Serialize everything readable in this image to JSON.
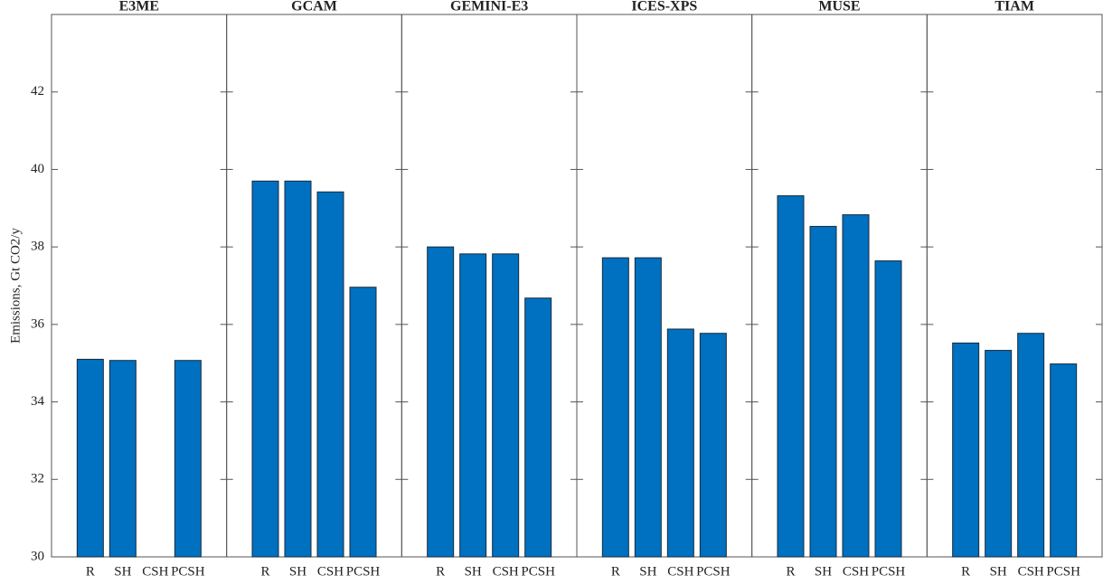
{
  "chart_data": [
    {
      "type": "bar",
      "title": "E3ME",
      "ylabel": "Emissions, Gt CO2/y",
      "categories": [
        "R",
        "SH",
        "CSH",
        "PCSH"
      ],
      "values": [
        35.1,
        35.07,
        null,
        35.07
      ],
      "color": "#0070c0",
      "ylim": [
        30,
        44
      ],
      "yticks": [
        30,
        32,
        34,
        36,
        38,
        40,
        42
      ]
    },
    {
      "type": "bar",
      "title": "GCAM",
      "categories": [
        "R",
        "SH",
        "CSH",
        "PCSH"
      ],
      "values": [
        39.7,
        39.7,
        39.42,
        36.96
      ],
      "color": "#0070c0",
      "ylim": [
        30,
        44
      ],
      "yticks": [
        30,
        32,
        34,
        36,
        38,
        40,
        42
      ]
    },
    {
      "type": "bar",
      "title": "GEMINI-E3",
      "categories": [
        "R",
        "SH",
        "CSH",
        "PCSH"
      ],
      "values": [
        38.0,
        37.82,
        37.82,
        36.68
      ],
      "color": "#0070c0",
      "ylim": [
        30,
        44
      ],
      "yticks": [
        30,
        32,
        34,
        36,
        38,
        40,
        42
      ]
    },
    {
      "type": "bar",
      "title": "ICES-XPS",
      "categories": [
        "R",
        "SH",
        "CSH",
        "PCSH"
      ],
      "values": [
        37.72,
        37.72,
        35.88,
        35.77
      ],
      "color": "#0070c0",
      "ylim": [
        30,
        44
      ],
      "yticks": [
        30,
        32,
        34,
        36,
        38,
        40,
        42
      ]
    },
    {
      "type": "bar",
      "title": "MUSE",
      "categories": [
        "R",
        "SH",
        "CSH",
        "PCSH"
      ],
      "values": [
        39.32,
        38.53,
        38.83,
        37.64
      ],
      "color": "#0070c0",
      "ylim": [
        30,
        44
      ],
      "yticks": [
        30,
        32,
        34,
        36,
        38,
        40,
        42
      ]
    },
    {
      "type": "bar",
      "title": "TIAM",
      "categories": [
        "R",
        "SH",
        "CSH",
        "PCSH"
      ],
      "values": [
        35.52,
        35.33,
        35.77,
        34.98
      ],
      "color": "#0070c0",
      "ylim": [
        30,
        44
      ],
      "yticks": [
        30,
        32,
        34,
        36,
        38,
        40,
        42
      ]
    }
  ]
}
